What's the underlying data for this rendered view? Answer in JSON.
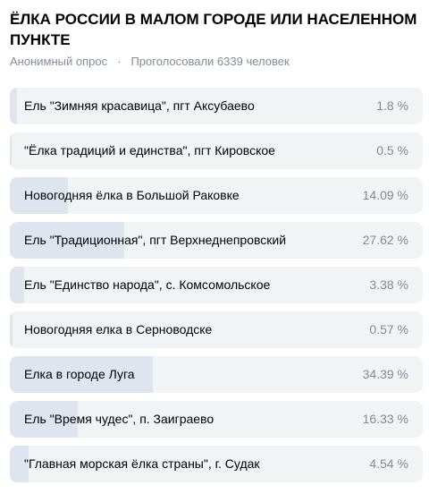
{
  "poll": {
    "title": "ЁЛКА РОССИИ В МАЛОМ ГОРОДЕ ИЛИ НАСЕЛЕННОМ ПУНКТЕ",
    "type_label": "Анонимный опрос",
    "separator": "·",
    "votes_label": "Проголосовали 6339 человек",
    "accent_fill_color": "#dee5ef",
    "option_bg_color": "#f2f3f5",
    "options": [
      {
        "label": "Ель \"Зимняя красавица\", пгт Аксубаево",
        "percent_text": "1.8 %",
        "percent": 1.8
      },
      {
        "label": "\"Ёлка традиций и единства\", пгт Кировское",
        "percent_text": "0.5 %",
        "percent": 0.5
      },
      {
        "label": "Новогодняя ёлка в Большой Раковке",
        "percent_text": "14.09 %",
        "percent": 14.09
      },
      {
        "label": "Ель \"Традиционная\", пгт Верхнеднепровский",
        "percent_text": "27.62 %",
        "percent": 27.62
      },
      {
        "label": "Ель \"Единство народа\", с. Комсомольское",
        "percent_text": "3.38 %",
        "percent": 3.38
      },
      {
        "label": "Новогодняя елка в Серноводске",
        "percent_text": "0.57 %",
        "percent": 0.57
      },
      {
        "label": "Елка в городе Луга",
        "percent_text": "34.39 %",
        "percent": 34.39
      },
      {
        "label": "Ель \"Время чудес\", п. Заиграево",
        "percent_text": "16.33 %",
        "percent": 16.33
      },
      {
        "label": "\"Главная морская ёлка страны\", г. Судак",
        "percent_text": "4.54 %",
        "percent": 4.54
      }
    ]
  }
}
